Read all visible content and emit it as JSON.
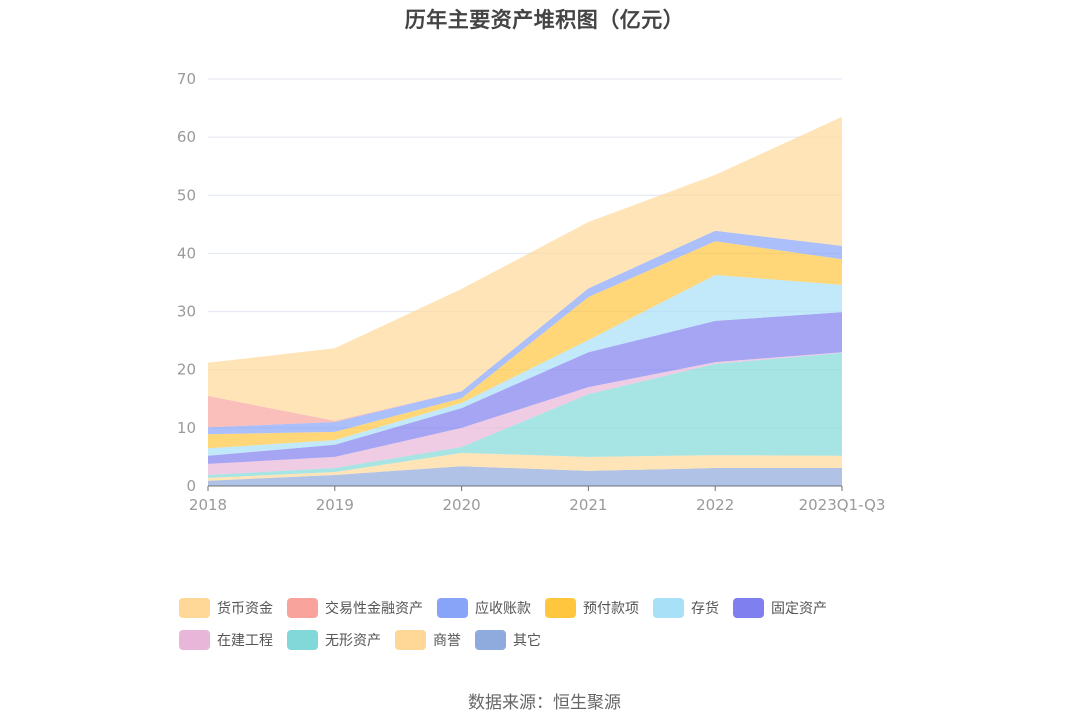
{
  "chart_data": {
    "type": "area",
    "stacked": true,
    "title": "历年主要资产堆积图（亿元）",
    "xlabel": "",
    "ylabel": "",
    "ylim": [
      0,
      70
    ],
    "yticks": [
      0,
      10,
      20,
      30,
      40,
      50,
      60,
      70
    ],
    "grid": true,
    "legend_position": "bottom",
    "categories": [
      "2018",
      "2019",
      "2020",
      "2021",
      "2022",
      "2023Q1-Q3"
    ],
    "series": [
      {
        "name": "其它",
        "color": "#8FAADC",
        "values": [
          0.9,
          1.9,
          3.4,
          2.6,
          3.1,
          3.1
        ]
      },
      {
        "name": "商誉",
        "color": "#FFD898",
        "values": [
          0.5,
          0.5,
          2.3,
          2.4,
          2.2,
          2.1
        ]
      },
      {
        "name": "无形资产",
        "color": "#82D8D8",
        "values": [
          0.5,
          0.7,
          1.0,
          10.8,
          15.7,
          17.7
        ]
      },
      {
        "name": "在建工程",
        "color": "#E8B6D8",
        "values": [
          1.9,
          1.9,
          3.3,
          1.2,
          0.3,
          0.1
        ]
      },
      {
        "name": "固定资产",
        "color": "#7F7FF0",
        "values": [
          1.4,
          2.1,
          3.4,
          6.0,
          7.1,
          6.9
        ]
      },
      {
        "name": "存货",
        "color": "#A8E0F8",
        "values": [
          1.3,
          0.8,
          0.9,
          2.1,
          7.9,
          4.7
        ]
      },
      {
        "name": "预付款项",
        "color": "#FFC63E",
        "values": [
          2.4,
          1.4,
          0.8,
          7.4,
          5.8,
          4.4
        ]
      },
      {
        "name": "应收账款",
        "color": "#88A4F8",
        "values": [
          1.2,
          1.7,
          1.2,
          1.5,
          1.8,
          2.3
        ]
      },
      {
        "name": "交易性金融资产",
        "color": "#F8A49C",
        "values": [
          5.4,
          0.2,
          0.0,
          0.0,
          0.0,
          0.0
        ]
      },
      {
        "name": "货币资金",
        "color": "#FFD898",
        "values": [
          5.7,
          12.5,
          17.6,
          11.4,
          9.6,
          22.2
        ]
      }
    ],
    "legend_order": [
      "货币资金",
      "交易性金融资产",
      "应收账款",
      "预付款项",
      "存货",
      "固定资产",
      "在建工程",
      "无形资产",
      "商誉",
      "其它"
    ],
    "source": "数据来源：恒生聚源"
  },
  "title": "历年主要资产堆积图（亿元）",
  "source": "数据来源：恒生聚源",
  "colors": {
    "axis": "#6E7079",
    "grid": "#E0E6F1",
    "tick_text": "#9a9a9a"
  }
}
